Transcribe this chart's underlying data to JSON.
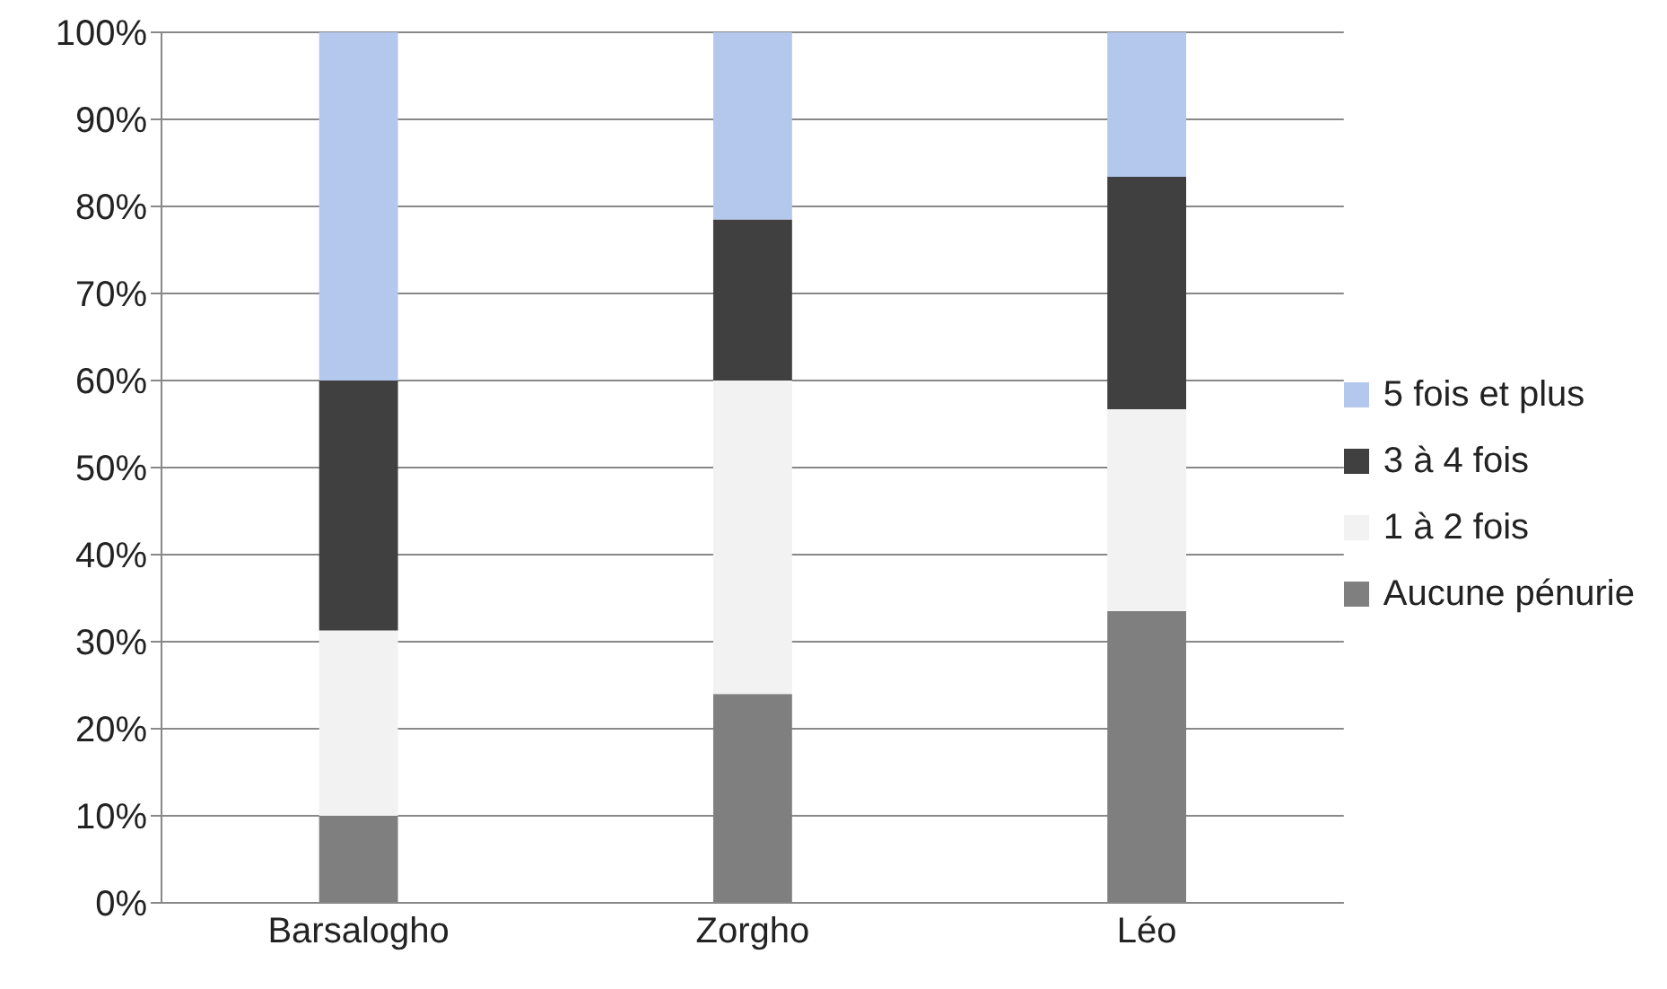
{
  "chart_data": {
    "type": "bar",
    "stacked": true,
    "categories": [
      "Barsalogho",
      "Zorgho",
      "Léo"
    ],
    "series": [
      {
        "name": "Aucune pénurie",
        "color": "#7f7f7f",
        "values": [
          10,
          24,
          33.5
        ]
      },
      {
        "name": "1 à 2 fois",
        "color": "#f2f2f2",
        "values": [
          21.3,
          36,
          23.2
        ]
      },
      {
        "name": "3 à 4 fois",
        "color": "#404040",
        "values": [
          28.7,
          18.5,
          26.7
        ]
      },
      {
        "name": "5 fois et plus",
        "color": "#b4c8ee",
        "values": [
          40,
          21.5,
          16.6
        ]
      }
    ],
    "ylim": [
      0,
      100
    ],
    "yticks": [
      {
        "value": 0,
        "label": "0%"
      },
      {
        "value": 10,
        "label": "10%"
      },
      {
        "value": 20,
        "label": "20%"
      },
      {
        "value": 30,
        "label": "30%"
      },
      {
        "value": 40,
        "label": "40%"
      },
      {
        "value": 50,
        "label": "50%"
      },
      {
        "value": 60,
        "label": "60%"
      },
      {
        "value": 70,
        "label": "70%"
      },
      {
        "value": 80,
        "label": "80%"
      },
      {
        "value": 90,
        "label": "90%"
      },
      {
        "value": 100,
        "label": "100%"
      }
    ],
    "grid": "y",
    "legend": "right"
  }
}
